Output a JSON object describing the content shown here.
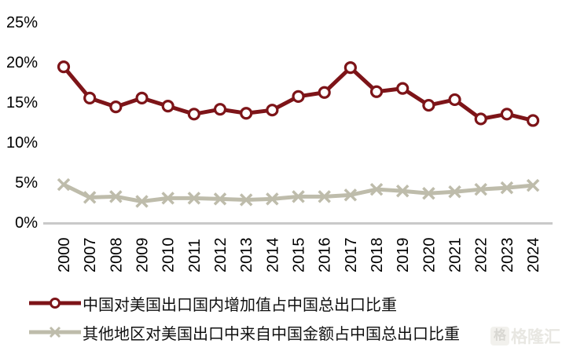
{
  "chart_data": {
    "type": "line",
    "title": "",
    "xlabel": "",
    "ylabel": "",
    "categories": [
      "2000",
      "2007",
      "2008",
      "2009",
      "2010",
      "2011",
      "2012",
      "2013",
      "2014",
      "2015",
      "2016",
      "2017",
      "2018",
      "2019",
      "2020",
      "2021",
      "2022",
      "2023",
      "2024"
    ],
    "y_axis": {
      "ticks": [
        {
          "label": "25%",
          "value": 25
        },
        {
          "label": "20%",
          "value": 20
        },
        {
          "label": "15%",
          "value": 15
        },
        {
          "label": "10%",
          "value": 10
        },
        {
          "label": "5%",
          "value": 5
        },
        {
          "label": "0%",
          "value": 0
        }
      ],
      "ylim": [
        0,
        25
      ],
      "unit": "%"
    },
    "series": [
      {
        "name": "中国对美国出口国内增加值占中国总出口比重",
        "color": "#7D1418",
        "marker": "open-circle",
        "values": [
          19.4,
          15.5,
          14.4,
          15.5,
          14.5,
          13.5,
          14.1,
          13.6,
          14.0,
          15.7,
          16.2,
          19.3,
          16.3,
          16.7,
          14.6,
          15.3,
          12.9,
          13.5,
          12.7
        ]
      },
      {
        "name": "其他地区对美国出口中来自中国金额占中国总出口比重",
        "color": "#BEBCAB",
        "marker": "x",
        "values": [
          4.7,
          3.1,
          3.2,
          2.6,
          3.0,
          3.0,
          2.9,
          2.8,
          2.9,
          3.2,
          3.2,
          3.4,
          4.1,
          3.9,
          3.6,
          3.8,
          4.1,
          4.3,
          4.6
        ]
      }
    ],
    "grid": false,
    "legend_position": "bottom-left"
  },
  "colors": {
    "axis_line": "#C9C9C9",
    "text": "#000000",
    "background": "#FFFFFF"
  },
  "watermark": {
    "text": "格隆汇",
    "icon": "格"
  }
}
